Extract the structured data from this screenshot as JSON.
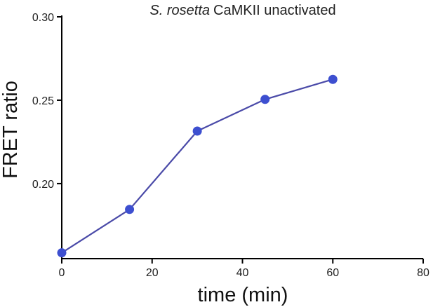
{
  "chart_data": {
    "type": "line",
    "title_italic": "S. rosetta",
    "title_rest": "CaMKII unactivated",
    "xlabel": "time (min)",
    "ylabel": "FRET ratio",
    "xlim": [
      0,
      80
    ],
    "ylim": [
      0.155,
      0.3
    ],
    "xticks": [
      0,
      20,
      40,
      60,
      80
    ],
    "xtick_labels": [
      "0",
      "20",
      "40",
      "60",
      "80"
    ],
    "yticks": [
      0.2,
      0.25,
      0.3
    ],
    "ytick_labels": [
      "0.20",
      "0.25",
      "0.30"
    ],
    "grid": false,
    "series": [
      {
        "color": "#4a4aa8",
        "marker_color": "#3d4fd0",
        "x": [
          0,
          15,
          30,
          45,
          60
        ],
        "y": [
          0.1585,
          0.1845,
          0.2315,
          0.2505,
          0.2625
        ]
      }
    ]
  }
}
